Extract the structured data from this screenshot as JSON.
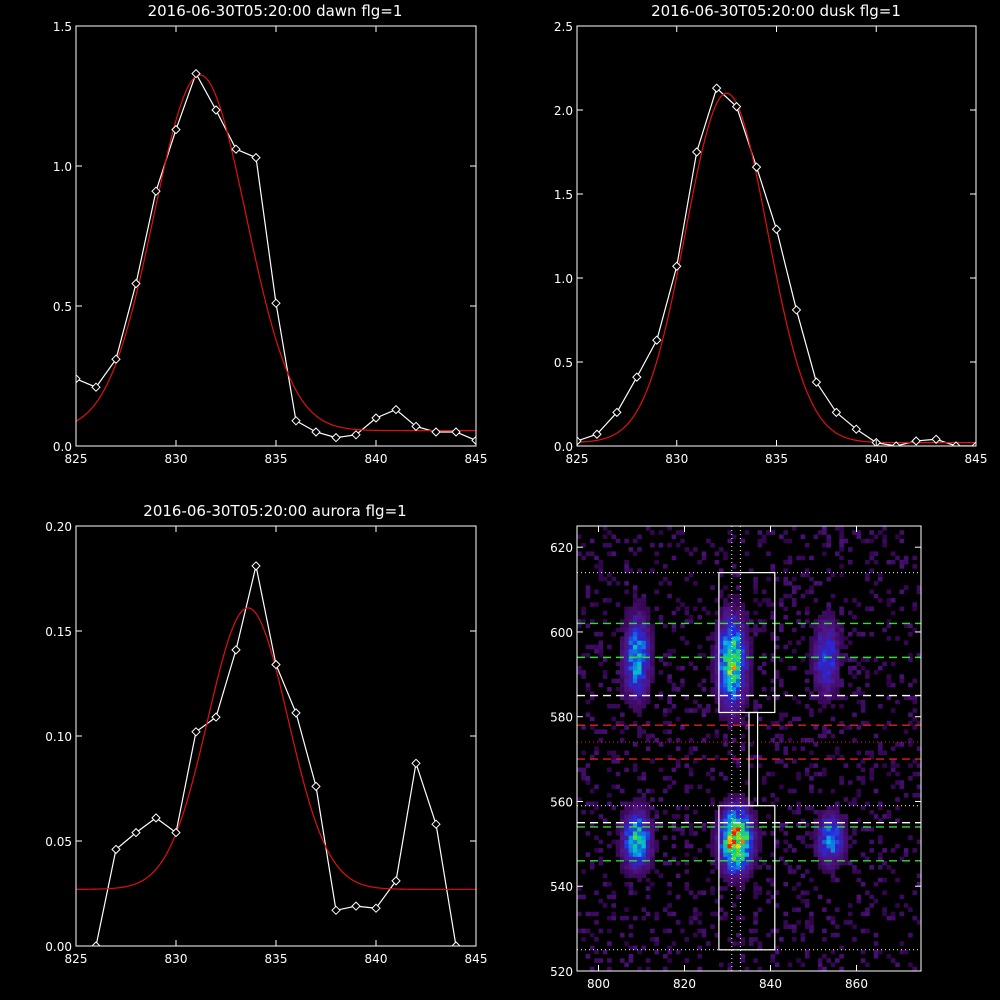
{
  "colors": {
    "background": "#000000",
    "axis": "#ffffff",
    "data_line": "#ffffff",
    "fit_line": "#e01010",
    "guide_green": "#33dd33",
    "guide_red": "#dd2020",
    "guide_white": "#ffffff"
  },
  "chart_data": [
    {
      "id": "dawn",
      "type": "line",
      "title": "2016-06-30T05:20:00 dawn flg=1",
      "xlim": [
        825,
        845
      ],
      "ylim": [
        0,
        1.5
      ],
      "xticks": [
        825,
        830,
        835,
        840,
        845
      ],
      "xtick_labels": [
        "825",
        "830",
        "835",
        "840",
        "845"
      ],
      "yticks": [
        0,
        0.5,
        1.0,
        1.5
      ],
      "ytick_labels": [
        "0.0",
        "0.5",
        "1.0",
        "1.5"
      ],
      "series": [
        {
          "role": "data",
          "marker": "diamond",
          "x": [
            825,
            826,
            827,
            828,
            829,
            830,
            831,
            832,
            833,
            834,
            835,
            836,
            837,
            838,
            839,
            840,
            841,
            842,
            843,
            844,
            845
          ],
          "y": [
            0.24,
            0.21,
            0.31,
            0.58,
            0.91,
            1.13,
            1.33,
            1.2,
            1.06,
            1.03,
            0.51,
            0.09,
            0.05,
            0.03,
            0.04,
            0.1,
            0.13,
            0.07,
            0.05,
            0.05,
            0.02
          ]
        },
        {
          "role": "fit",
          "model": "gaussian",
          "amplitude": 1.27,
          "center": 831.2,
          "sigma": 2.3,
          "offset": 0.055
        }
      ]
    },
    {
      "id": "dusk",
      "type": "line",
      "title": "2016-06-30T05:20:00 dusk flg=1",
      "xlim": [
        825,
        845
      ],
      "ylim": [
        0,
        2.5
      ],
      "xticks": [
        825,
        830,
        835,
        840,
        845
      ],
      "xtick_labels": [
        "825",
        "830",
        "835",
        "840",
        "845"
      ],
      "yticks": [
        0,
        0.5,
        1.0,
        1.5,
        2.0,
        2.5
      ],
      "ytick_labels": [
        "0.0",
        "0.5",
        "1.0",
        "1.5",
        "2.0",
        "2.5"
      ],
      "series": [
        {
          "role": "data",
          "marker": "diamond",
          "x": [
            825,
            826,
            827,
            828,
            829,
            830,
            831,
            832,
            833,
            834,
            835,
            836,
            837,
            838,
            839,
            840,
            841,
            842,
            843,
            844,
            845
          ],
          "y": [
            0.03,
            0.07,
            0.2,
            0.41,
            0.63,
            1.07,
            1.75,
            2.13,
            2.02,
            1.66,
            1.29,
            0.81,
            0.38,
            0.2,
            0.1,
            0.02,
            0.0,
            0.03,
            0.04,
            0.0,
            0.0
          ]
        },
        {
          "role": "fit",
          "model": "gaussian",
          "amplitude": 2.08,
          "center": 832.5,
          "sigma": 2.05,
          "offset": 0.02
        }
      ]
    },
    {
      "id": "aurora",
      "type": "line",
      "title": "2016-06-30T05:20:00 aurora flg=1",
      "xlim": [
        825,
        845
      ],
      "ylim": [
        0,
        0.2
      ],
      "xticks": [
        825,
        830,
        835,
        840,
        845
      ],
      "xtick_labels": [
        "825",
        "830",
        "835",
        "840",
        "845"
      ],
      "yticks": [
        0,
        0.05,
        0.1,
        0.15,
        0.2
      ],
      "ytick_labels": [
        "0.00",
        "0.05",
        "0.10",
        "0.15",
        "0.20"
      ],
      "series": [
        {
          "role": "data",
          "marker": "diamond",
          "x": [
            826,
            827,
            828,
            829,
            830,
            831,
            832,
            833,
            834,
            835,
            836,
            837,
            838,
            839,
            840,
            841,
            842,
            843,
            844
          ],
          "y": [
            0.0,
            0.046,
            0.054,
            0.061,
            0.054,
            0.102,
            0.109,
            0.141,
            0.181,
            0.134,
            0.111,
            0.076,
            0.017,
            0.019,
            0.018,
            0.031,
            0.087,
            0.058,
            0.0
          ]
        },
        {
          "role": "fit",
          "model": "gaussian",
          "amplitude": 0.134,
          "center": 833.6,
          "sigma": 2.0,
          "offset": 0.027
        }
      ]
    },
    {
      "id": "spectral-image",
      "type": "heatmap",
      "title": "",
      "xlim": [
        795,
        875
      ],
      "ylim": [
        520,
        625
      ],
      "xticks": [
        800,
        820,
        840,
        860
      ],
      "xtick_labels": [
        "800",
        "820",
        "840",
        "860"
      ],
      "yticks": [
        520,
        540,
        560,
        580,
        600,
        620
      ],
      "ytick_labels": [
        "520",
        "540",
        "560",
        "580",
        "600",
        "620"
      ],
      "blobs": [
        {
          "x": 809,
          "y": 594,
          "sx": 2.0,
          "sy": 6.5,
          "peak": 0.55
        },
        {
          "x": 831,
          "y": 593,
          "sx": 2.2,
          "sy": 7.0,
          "peak": 0.75
        },
        {
          "x": 853,
          "y": 594,
          "sx": 2.0,
          "sy": 6.0,
          "peak": 0.4
        },
        {
          "x": 809,
          "y": 551,
          "sx": 2.2,
          "sy": 4.5,
          "peak": 0.62
        },
        {
          "x": 832,
          "y": 551,
          "sx": 2.4,
          "sy": 4.8,
          "peak": 1.0
        },
        {
          "x": 854,
          "y": 551,
          "sx": 2.2,
          "sy": 4.0,
          "peak": 0.48
        }
      ],
      "boxes": [
        {
          "x0": 828,
          "x1": 841,
          "y0": 581,
          "y1": 614
        },
        {
          "x0": 835,
          "x1": 837,
          "y0": 559,
          "y1": 581
        },
        {
          "x0": 828,
          "x1": 841,
          "y0": 525,
          "y1": 559
        }
      ],
      "hlines": [
        {
          "y": 614,
          "style": "dotted",
          "color": "white"
        },
        {
          "y": 602,
          "style": "dashed",
          "color": "green"
        },
        {
          "y": 594,
          "style": "dashed",
          "color": "green"
        },
        {
          "y": 585,
          "style": "dashed",
          "color": "white"
        },
        {
          "y": 578,
          "style": "dashed",
          "color": "red"
        },
        {
          "y": 574,
          "style": "dotted",
          "color": "red"
        },
        {
          "y": 570,
          "style": "dashed",
          "color": "red"
        },
        {
          "y": 559,
          "style": "dotted",
          "color": "white"
        },
        {
          "y": 555,
          "style": "dashed",
          "color": "white"
        },
        {
          "y": 554,
          "style": "dashed",
          "color": "green"
        },
        {
          "y": 546,
          "style": "dashed",
          "color": "green"
        },
        {
          "y": 525,
          "style": "dotted",
          "color": "white"
        }
      ],
      "vlines": [
        {
          "x": 831,
          "style": "dotted",
          "color": "white"
        },
        {
          "x": 833,
          "style": "dotted",
          "color": "white"
        }
      ]
    }
  ]
}
